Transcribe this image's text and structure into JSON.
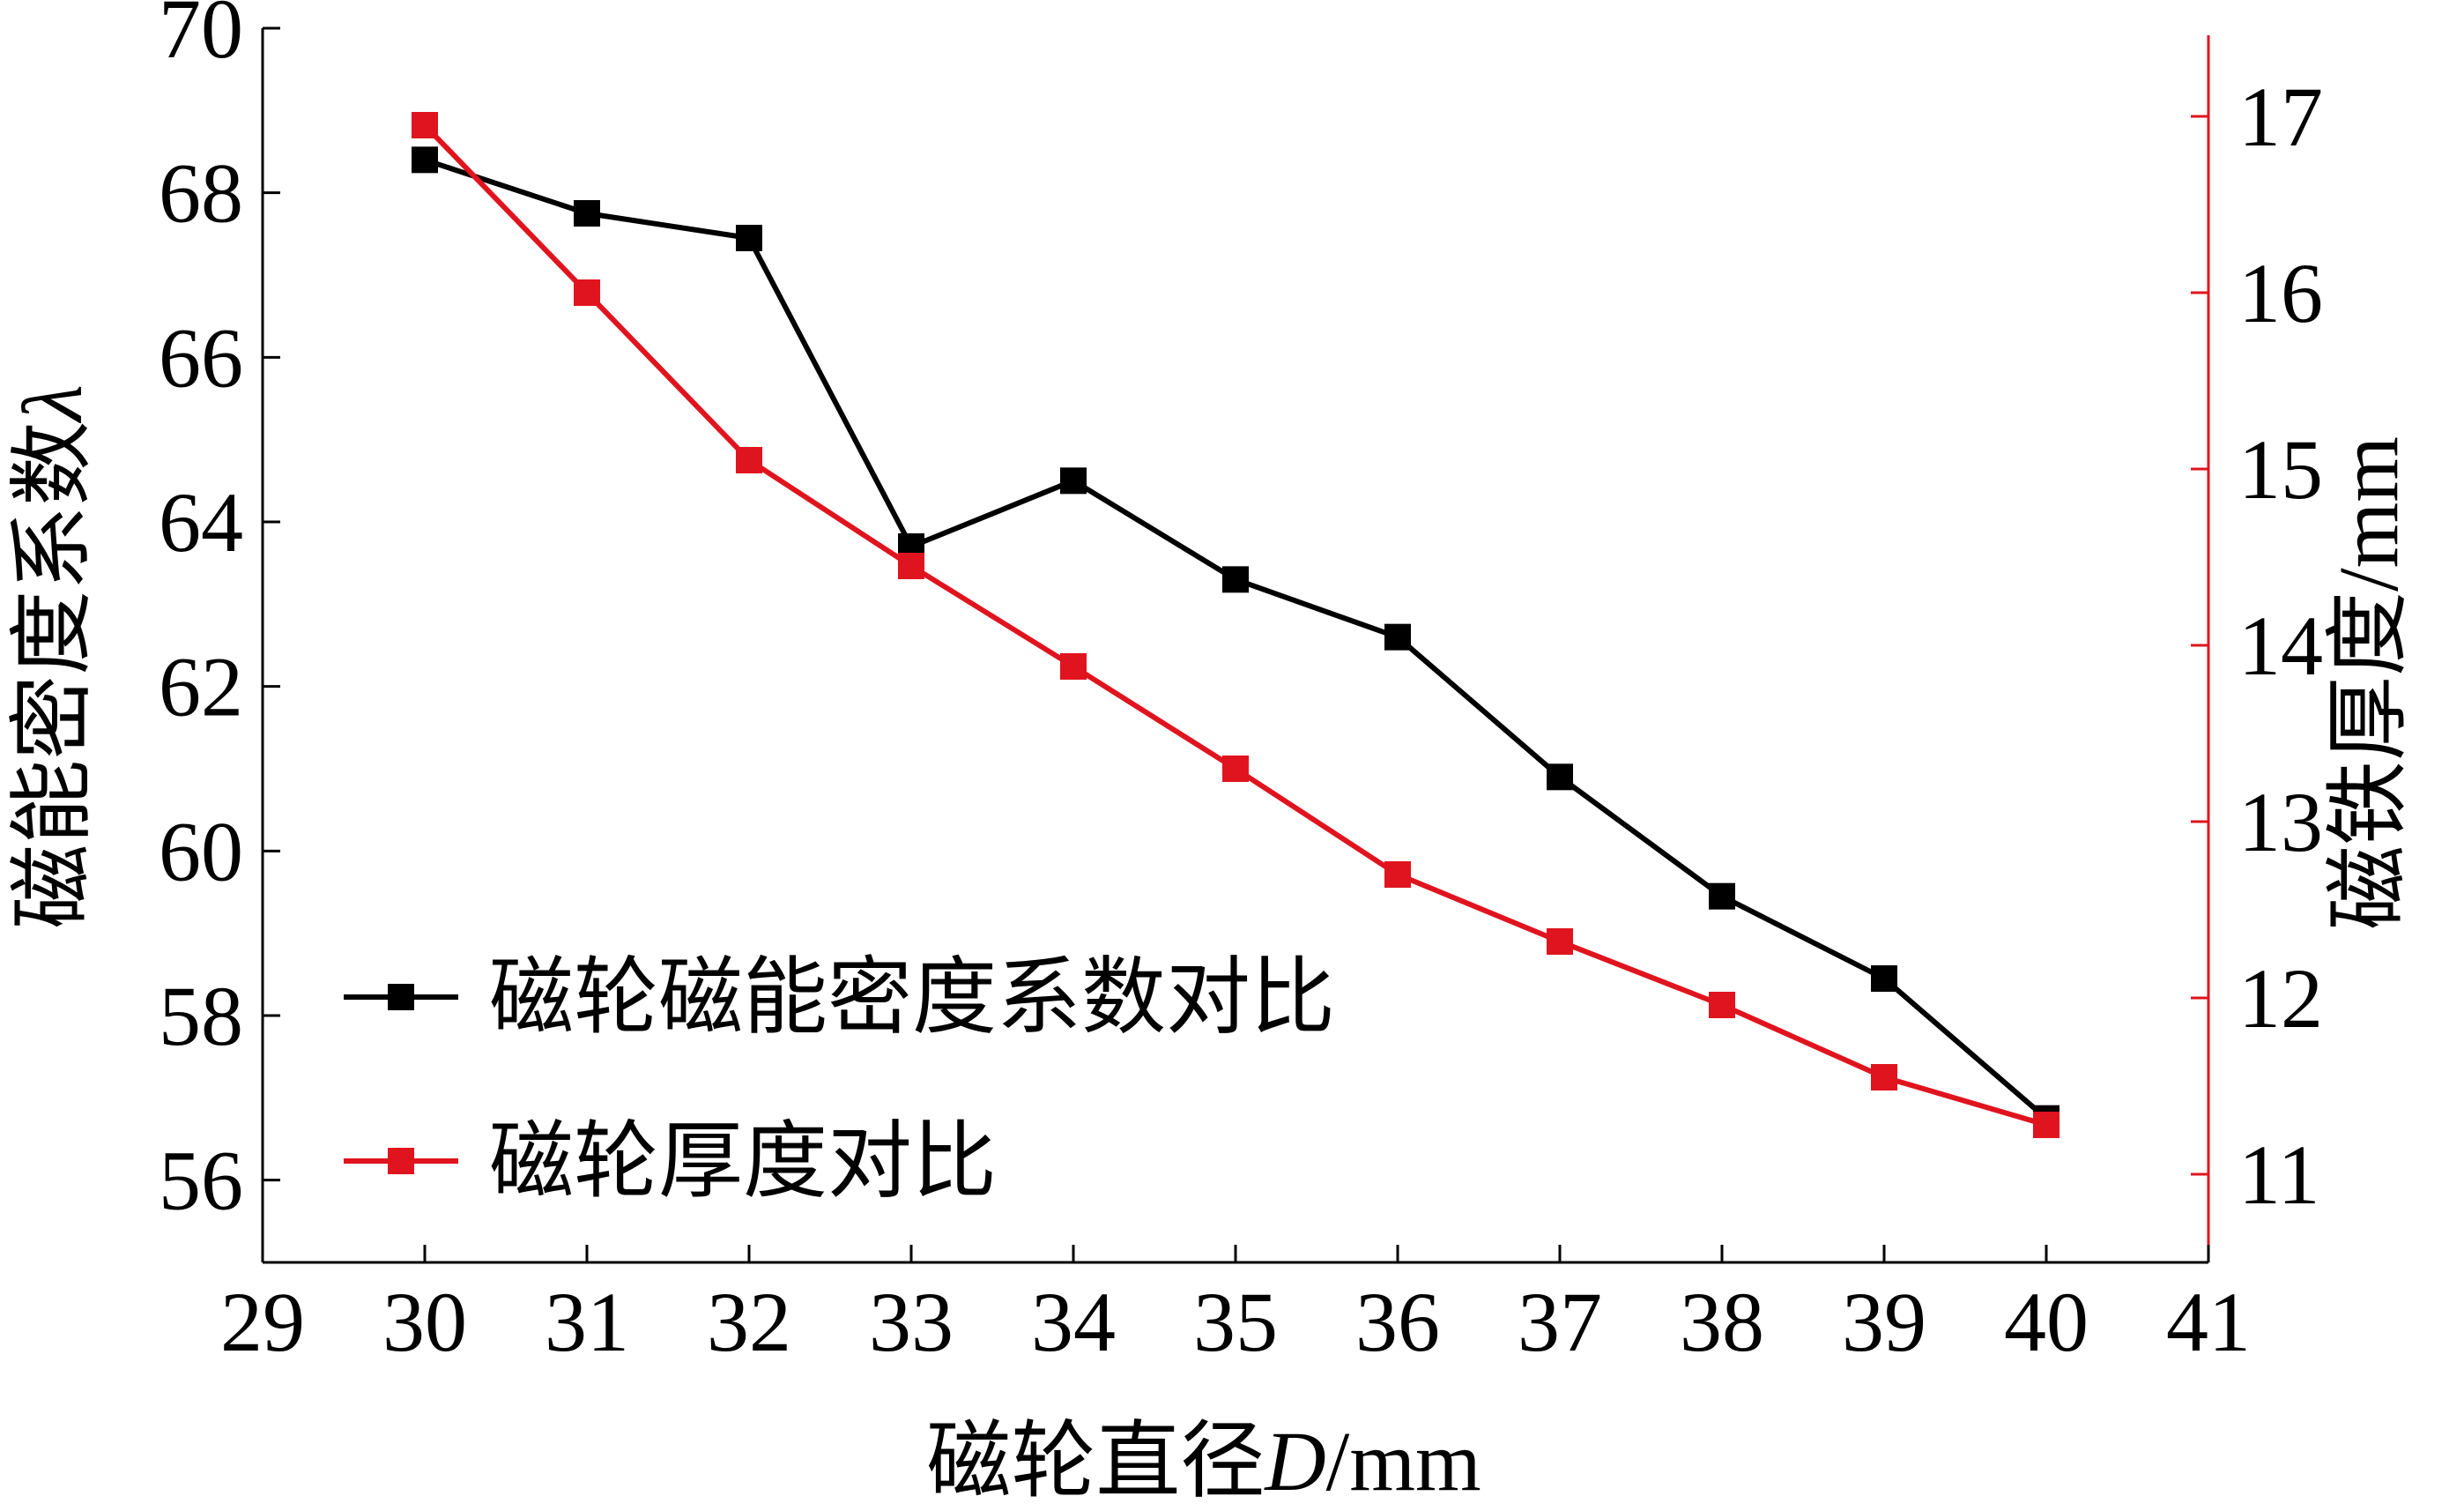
{
  "chart_data": {
    "type": "line",
    "x": [
      30,
      31,
      32,
      33,
      34,
      35,
      36,
      37,
      38,
      39,
      40
    ],
    "xlim": [
      29,
      41
    ],
    "xticks": [
      "29",
      "30",
      "31",
      "32",
      "33",
      "34",
      "35",
      "36",
      "37",
      "38",
      "39",
      "40",
      "41"
    ],
    "xlabel": {
      "cn": "磁轮直径",
      "var": "D",
      "unit": "/mm"
    },
    "ylim": [
      55,
      70
    ],
    "yticks": [
      "56",
      "58",
      "60",
      "62",
      "64",
      "66",
      "68",
      "70"
    ],
    "ylabel": {
      "cn": "磁能密度系数",
      "var": "λ"
    },
    "y2lim": [
      10.5,
      17.5
    ],
    "y2ticks": [
      "11",
      "12",
      "13",
      "14",
      "15",
      "16",
      "17"
    ],
    "y2label": "磁铁厚度/mm",
    "grid": false,
    "legend_position": "lower-left",
    "series": [
      {
        "name": "磁轮磁能密度系数对比",
        "axis": "left",
        "color": "#000000",
        "values": [
          68.4,
          67.75,
          67.45,
          63.7,
          64.5,
          63.3,
          62.6,
          60.9,
          59.45,
          58.45,
          56.75
        ]
      },
      {
        "name": "磁轮厚度对比",
        "axis": "right",
        "color": "#e0141e",
        "values": [
          16.95,
          16.0,
          15.05,
          14.45,
          13.88,
          13.3,
          12.7,
          12.32,
          11.96,
          11.55,
          11.28
        ]
      }
    ]
  }
}
